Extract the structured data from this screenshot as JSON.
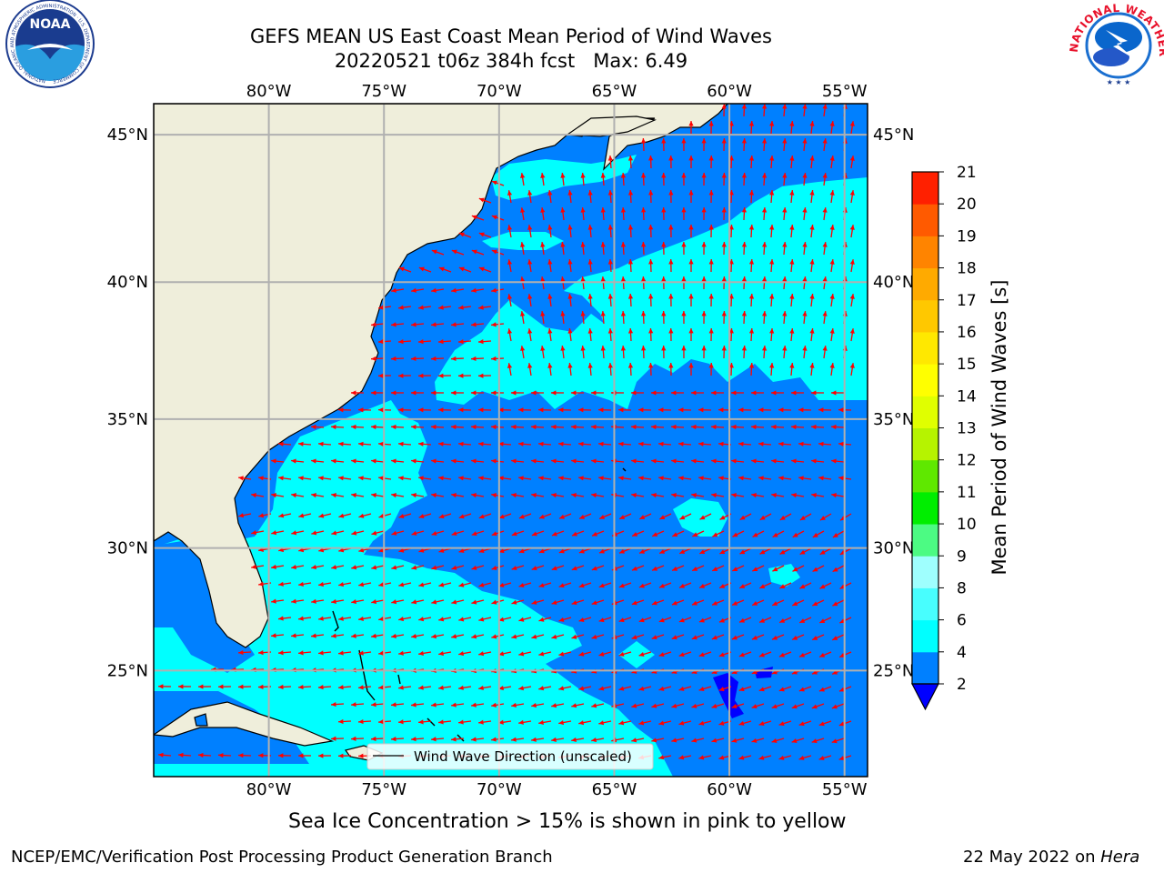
{
  "title": {
    "line1": "GEFS MEAN US East Coast Mean Period of Wind Waves",
    "line2": "20220521 t06z 384h fcst   Max: 6.49"
  },
  "logos": {
    "left": {
      "icon": "noaa-logo",
      "text": "NOAA",
      "ring_text": "NATIONAL OCEANIC AND ATMOSPHERIC ADMINISTRATION · U.S. DEPARTMENT OF COMMERCE"
    },
    "right": {
      "icon": "nws-logo",
      "ring_text": "NATIONAL WEATHER SERVICE"
    }
  },
  "map": {
    "lon_ticks": [
      "80°W",
      "75°W",
      "70°W",
      "65°W",
      "60°W",
      "55°W"
    ],
    "lat_ticks": [
      "45°N",
      "40°N",
      "35°N",
      "30°N",
      "25°N"
    ],
    "lon_values": [
      -80,
      -75,
      -70,
      -65,
      -60,
      -55
    ],
    "lat_values": [
      45,
      40,
      35,
      30,
      25
    ],
    "extent": {
      "lon_min": -85,
      "lon_max": -54,
      "lat_min": 20.5,
      "lat_max": 46
    },
    "grid": true,
    "land_color": "#efeedb",
    "ocean_colors": {
      "2-4": "#0080ff",
      "4-6": "#00ffff",
      "below-2": "#0000ff"
    },
    "arrow_color": "#ff0000",
    "legend": "Wind Wave Direction (unscaled)"
  },
  "colorbar": {
    "label": "Mean Period of Wind Waves [s]",
    "ticks": [
      "2",
      "4",
      "6",
      "8",
      "9",
      "10",
      "11",
      "12",
      "13",
      "14",
      "15",
      "16",
      "17",
      "18",
      "19",
      "20",
      "21"
    ],
    "colors": [
      "#0080ff",
      "#00ffff",
      "#48fefe",
      "#9ffffe",
      "#4cfb83",
      "#00ee00",
      "#5fe800",
      "#b6f300",
      "#e0ff00",
      "#ffff00",
      "#ffe800",
      "#ffc800",
      "#ffaa00",
      "#ff8400",
      "#ff5a00",
      "#ff2000"
    ],
    "under_color": "#0000ff"
  },
  "footer": {
    "sea_ice": "Sea Ice Concentration > 15% is shown in pink to yellow",
    "branch": "NCEP/EMC/Verification Post Processing Product Generation Branch",
    "date": "22 May 2022 on ",
    "machine": "Hera"
  }
}
